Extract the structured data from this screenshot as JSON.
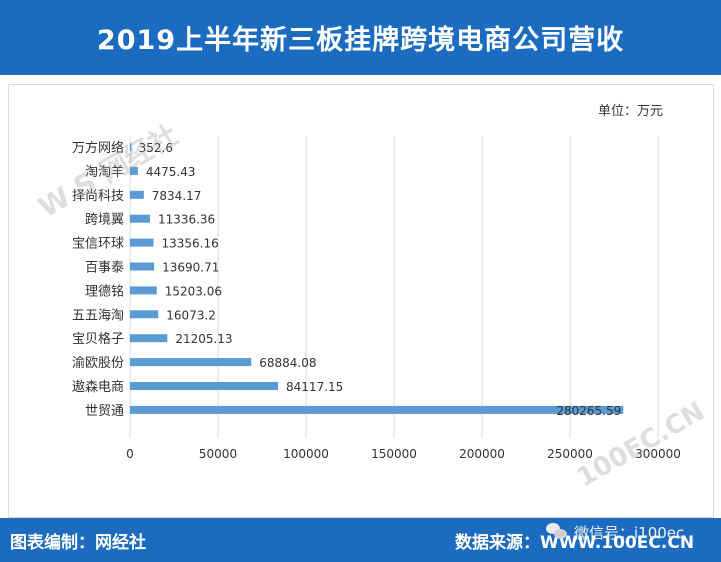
{
  "header": {
    "title": "2019上半年新三板挂牌跨境电商公司营收"
  },
  "unit_label": "单位：万元",
  "watermark": {
    "brand": "W S 网经社",
    "sub": "100EC.CN"
  },
  "footer": {
    "left_text": "图表编制：网经社",
    "right_text": "数据来源：",
    "right_url": "WWW.100EC.CN",
    "wechat_text": "微信号：i100ec"
  },
  "colors": {
    "header_bg": "#1b6cc0",
    "bar": "#5b9bd5",
    "grid": "#d9d9d9",
    "text": "#333333"
  },
  "chart_data": {
    "type": "bar",
    "orientation": "horizontal",
    "title": "2019上半年新三板挂牌跨境电商公司营收",
    "xlabel": "",
    "ylabel": "",
    "unit": "万元",
    "categories": [
      "万方网络",
      "淘淘羊",
      "择尚科技",
      "跨境翼",
      "宝信环球",
      "百事泰",
      "理德铭",
      "五五海淘",
      "宝贝格子",
      "渝欧股份",
      "遨森电商",
      "世贸通"
    ],
    "values": [
      352.6,
      4475.43,
      7834.17,
      11336.36,
      13356.16,
      13690.71,
      15203.06,
      16073.2,
      21205.13,
      68884.08,
      84117.15,
      280265.59
    ],
    "value_labels": [
      "352.6",
      "4475.43",
      "7834.17",
      "11336.36",
      "13356.16",
      "13690.71",
      "15203.06",
      "16073.2",
      "21205.13",
      "68884.08",
      "84117.15",
      "280265.59"
    ],
    "xlim": [
      0,
      300000
    ],
    "xticks": [
      0,
      50000,
      100000,
      150000,
      200000,
      250000,
      300000
    ],
    "xtick_labels": [
      "0",
      "50000",
      "100000",
      "150000",
      "200000",
      "250000",
      "300000"
    ],
    "grid": true,
    "legend": "none"
  }
}
